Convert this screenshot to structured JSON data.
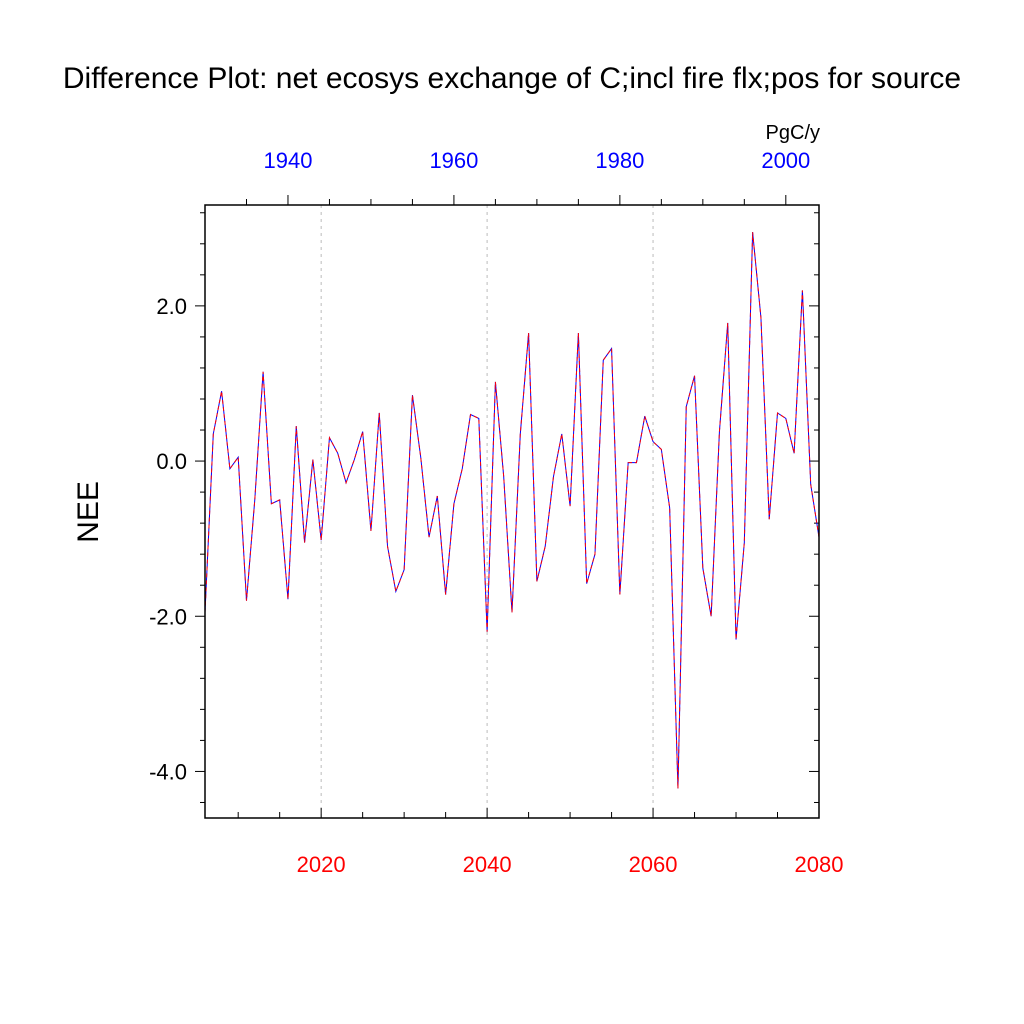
{
  "chart_data": {
    "type": "line",
    "title": "Difference Plot: net ecosys exchange of C;incl fire flx;pos for source",
    "ylabel": "NEE",
    "units": "PgC/y",
    "xlim_bottom": [
      2006,
      2080
    ],
    "xlim_top": [
      1930,
      2004
    ],
    "ylim": [
      -4.6,
      3.3
    ],
    "y_ticks": [
      {
        "value": 2.0,
        "label": "2.0"
      },
      {
        "value": 0.0,
        "label": "0.0"
      },
      {
        "value": -2.0,
        "label": "-2.0"
      },
      {
        "value": -4.0,
        "label": "-4.0"
      }
    ],
    "x_bottom_ticks": [
      {
        "value": 2020,
        "label": "2020"
      },
      {
        "value": 2040,
        "label": "2040"
      },
      {
        "value": 2060,
        "label": "2060"
      },
      {
        "value": 2080,
        "label": "2080"
      }
    ],
    "x_top_ticks": [
      {
        "value": 1940,
        "label": "1940"
      },
      {
        "value": 1960,
        "label": "1960"
      },
      {
        "value": 1980,
        "label": "1980"
      },
      {
        "value": 2000,
        "label": "2000"
      }
    ],
    "grid_x": [
      2020,
      2040,
      2060
    ],
    "colors": {
      "bottom_axis": "#ff0000",
      "top_axis": "#0000ff",
      "line_solid": "#0000ff",
      "line_dash": "#ff0000",
      "grid": "#bbbbbb"
    },
    "x": [
      2006,
      2007,
      2008,
      2009,
      2010,
      2011,
      2012,
      2013,
      2014,
      2015,
      2016,
      2017,
      2018,
      2019,
      2020,
      2021,
      2022,
      2023,
      2024,
      2025,
      2026,
      2027,
      2028,
      2029,
      2030,
      2031,
      2032,
      2033,
      2034,
      2035,
      2036,
      2037,
      2038,
      2039,
      2040,
      2041,
      2042,
      2043,
      2044,
      2045,
      2046,
      2047,
      2048,
      2049,
      2050,
      2051,
      2052,
      2053,
      2054,
      2055,
      2056,
      2057,
      2058,
      2059,
      2060,
      2061,
      2062,
      2063,
      2064,
      2065,
      2066,
      2067,
      2068,
      2069,
      2070,
      2071,
      2072,
      2073,
      2074,
      2075,
      2076,
      2077,
      2078,
      2079,
      2080
    ],
    "values": [
      -1.95,
      0.35,
      0.9,
      -0.1,
      0.05,
      -1.8,
      -0.5,
      1.15,
      -0.55,
      -0.5,
      -1.78,
      0.45,
      -1.05,
      0.02,
      -1.02,
      0.3,
      0.1,
      -0.28,
      0.02,
      0.38,
      -0.9,
      0.62,
      -1.1,
      -1.68,
      -1.4,
      0.85,
      0.05,
      -0.98,
      -0.45,
      -1.72,
      -0.55,
      -0.1,
      0.6,
      0.55,
      -2.2,
      1.02,
      -0.2,
      -1.95,
      0.35,
      1.65,
      -1.55,
      -1.1,
      -0.2,
      0.35,
      -0.58,
      1.65,
      -1.58,
      -1.2,
      1.3,
      1.45,
      -1.72,
      -0.02,
      -0.02,
      0.58,
      0.25,
      0.15,
      -0.6,
      -4.22,
      0.7,
      1.1,
      -1.38,
      -2.0,
      0.38,
      1.78,
      -2.3,
      -1.05,
      2.95,
      1.85,
      -0.75,
      0.62,
      0.55,
      0.1,
      2.2,
      -0.3,
      -0.98
    ]
  }
}
